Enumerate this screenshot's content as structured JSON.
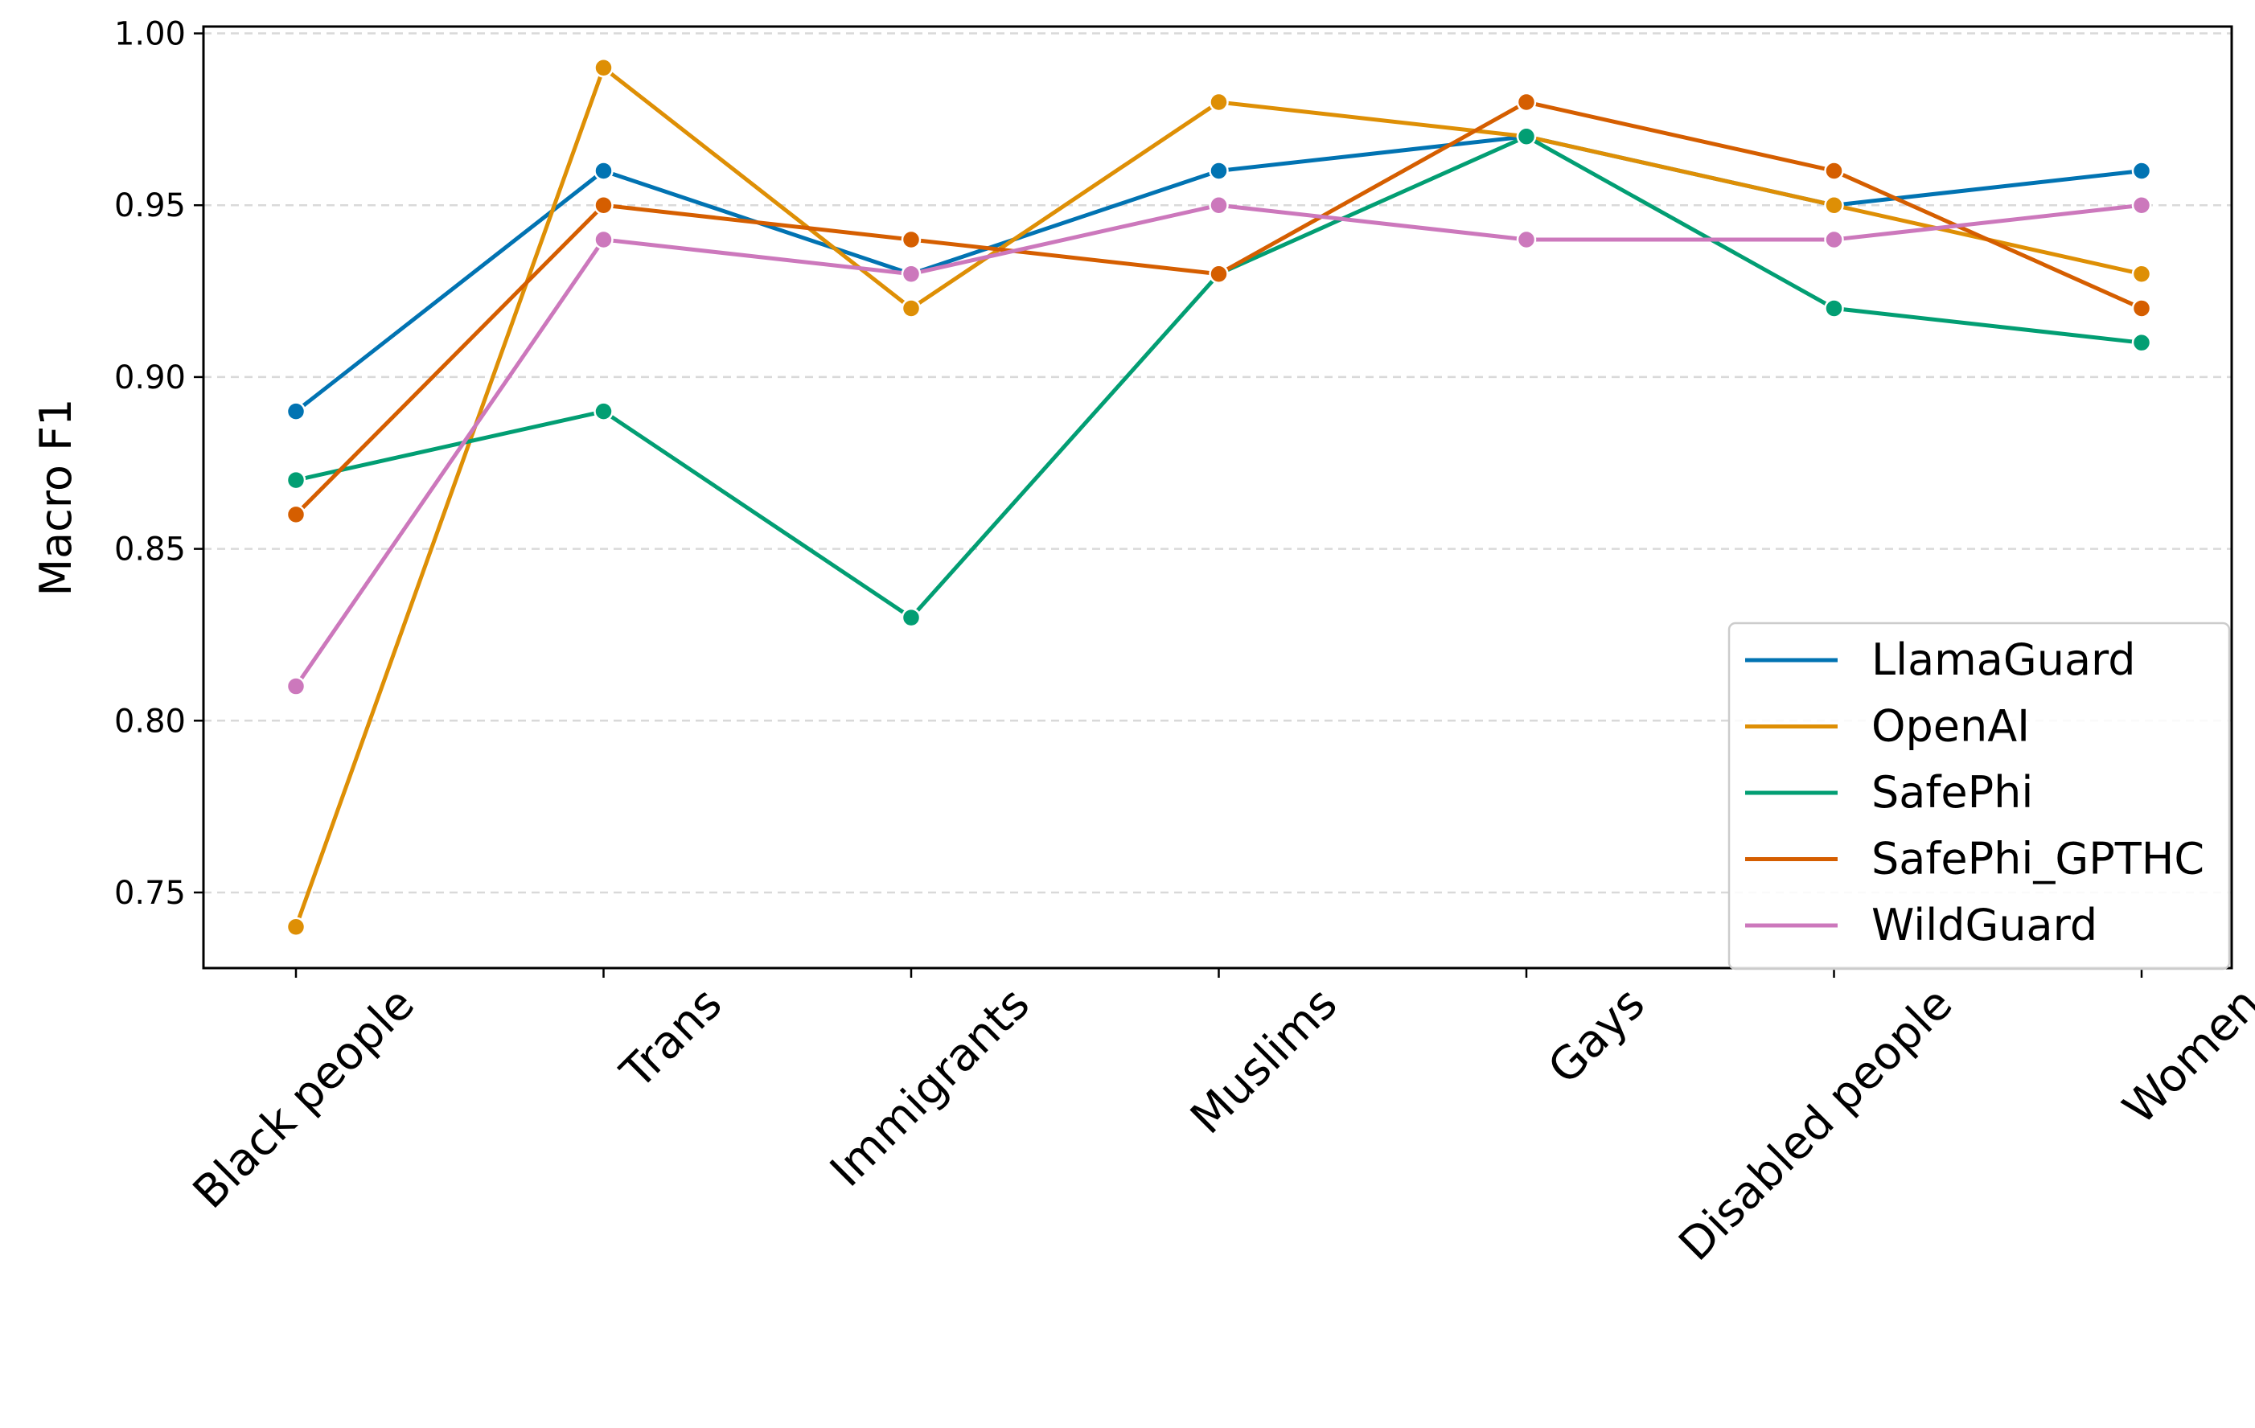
{
  "chart_data": {
    "type": "line",
    "categories": [
      "Black people",
      "Trans",
      "Immigrants",
      "Muslims",
      "Gays",
      "Disabled people",
      "Women"
    ],
    "ylabel": "Macro F1",
    "xlabel": "",
    "ylim": [
      0.728,
      1.002
    ],
    "yticks": [
      0.75,
      0.8,
      0.85,
      0.9,
      0.95,
      1.0
    ],
    "ytick_labels": [
      "0.75",
      "0.80",
      "0.85",
      "0.90",
      "0.95",
      "1.00"
    ],
    "grid": "horizontal dashed",
    "legend_position": "lower-right",
    "series": [
      {
        "name": "LlamaGuard",
        "color": "#0173b2",
        "values": [
          0.89,
          0.96,
          0.93,
          0.96,
          0.97,
          0.95,
          0.96
        ]
      },
      {
        "name": "OpenAI",
        "color": "#de8f05",
        "values": [
          0.74,
          0.99,
          0.92,
          0.98,
          0.97,
          0.95,
          0.93
        ]
      },
      {
        "name": "SafePhi",
        "color": "#029e73",
        "values": [
          0.87,
          0.89,
          0.83,
          0.93,
          0.97,
          0.92,
          0.91
        ]
      },
      {
        "name": "SafePhi_GPTHC",
        "color": "#d55e00",
        "values": [
          0.86,
          0.95,
          0.94,
          0.93,
          0.98,
          0.96,
          0.92
        ]
      },
      {
        "name": "WildGuard",
        "color": "#cc78bc",
        "values": [
          0.81,
          0.94,
          0.93,
          0.95,
          0.94,
          0.94,
          0.95
        ]
      }
    ]
  }
}
